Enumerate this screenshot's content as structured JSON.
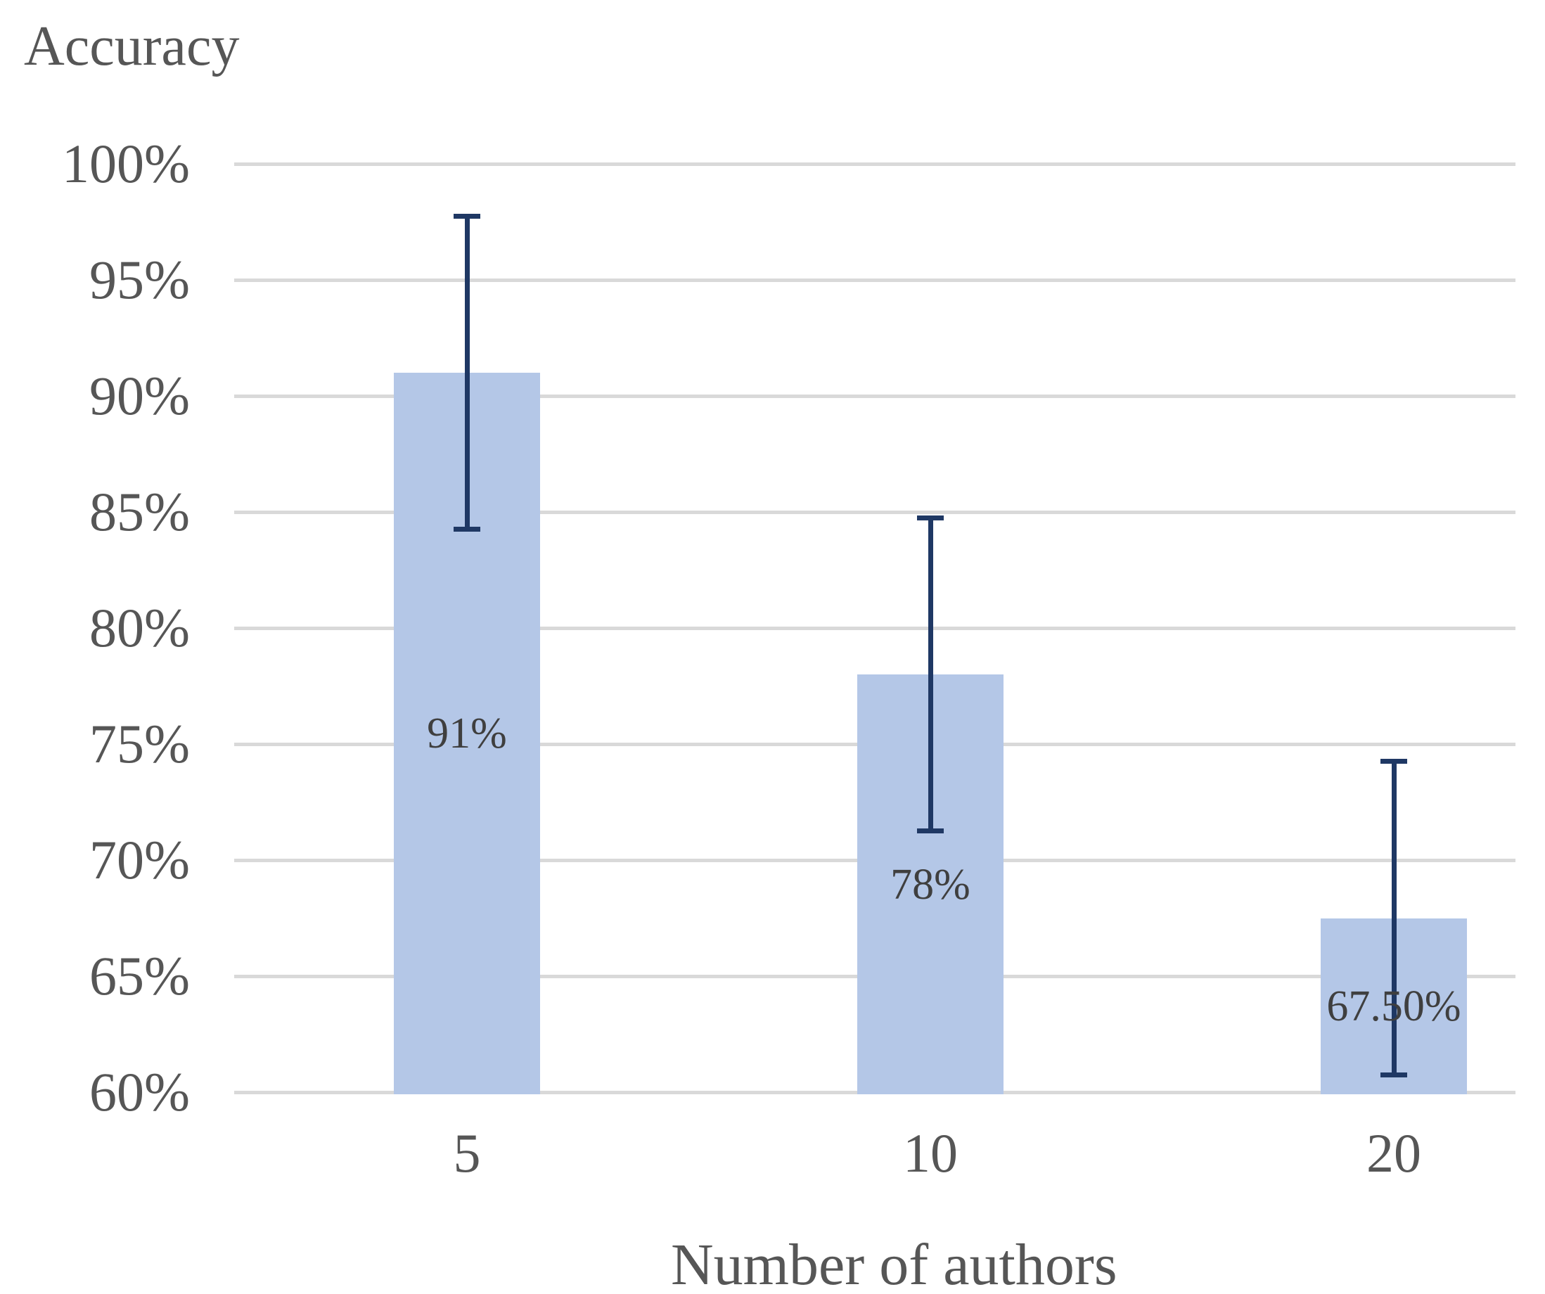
{
  "chart_data": {
    "type": "bar",
    "title": "Accuracy",
    "xlabel": "Number of authors",
    "categories": [
      "5",
      "10",
      "20"
    ],
    "values": [
      91,
      78,
      67.5
    ],
    "bar_labels": [
      "91%",
      "78%",
      "67.50%"
    ],
    "error_upper": [
      97.75,
      84.75,
      74.25
    ],
    "error_lower": [
      84.25,
      71.25,
      60.75
    ],
    "yticks": [
      {
        "value": 100,
        "label": "100%"
      },
      {
        "value": 95,
        "label": "95%"
      },
      {
        "value": 90,
        "label": "90%"
      },
      {
        "value": 85,
        "label": "85%"
      },
      {
        "value": 80,
        "label": "80%"
      },
      {
        "value": 75,
        "label": "75%"
      },
      {
        "value": 70,
        "label": "70%"
      },
      {
        "value": 65,
        "label": "65%"
      },
      {
        "value": 60,
        "label": "60%"
      }
    ],
    "ylim": [
      60,
      100
    ],
    "grid": true,
    "legend": "none",
    "colors": {
      "bar_fill": "#b4c7e7",
      "error_bar": "#1f3864",
      "grid_line": "#d9d9d9",
      "axis_text": "#565656",
      "bar_label_text": "#3f3f3f",
      "background": "#ffffff"
    }
  }
}
